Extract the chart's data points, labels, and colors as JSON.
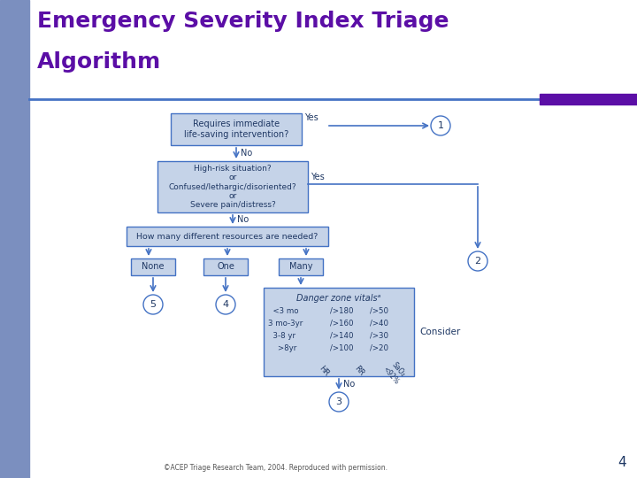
{
  "title_line1": "Emergency Severity Index Triage",
  "title_line2": "Algorithm",
  "title_color": "#5B0EA6",
  "title_fontsize": 18,
  "bg_color": "#FFFFFF",
  "left_bar_color": "#7B8FBF",
  "header_line_color": "#4472C4",
  "header_bar_color": "#5B0EA6",
  "box_fill": "#C5D3E8",
  "box_border": "#4472C4",
  "box_dark_fill": "#8FA8C8",
  "arrow_color": "#4472C4",
  "circle_fill": "#FFFFFF",
  "circle_border": "#4472C4",
  "text_color": "#1F3864",
  "footer_text": "©ACEP Triage Research Team, 2004. Reproduced with permission.",
  "page_number": "4"
}
